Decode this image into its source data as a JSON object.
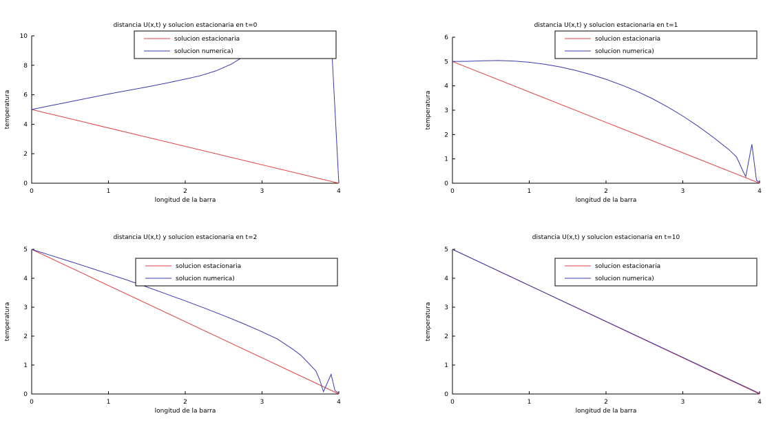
{
  "figure": {
    "background": "#ffffff",
    "axis_color": "#000000",
    "series_colors": {
      "estacionaria": "#e04040",
      "numerica": "#3838b0"
    }
  },
  "chart_data": [
    {
      "type": "line",
      "title": "distancia U(x,t) y solucion estacionaria en t=0",
      "xlabel": "longitud de la barra",
      "ylabel": "temperatura",
      "xlim": [
        0,
        4
      ],
      "ylim": [
        0,
        10
      ],
      "xticks": [
        0,
        1,
        2,
        3,
        4
      ],
      "yticks": [
        0,
        2,
        4,
        6,
        8,
        10
      ],
      "grid": false,
      "legend_position": "top-right-inside",
      "series": [
        {
          "name": "solucion estacionaria",
          "color": "#e04040",
          "points": [
            [
              0,
              5
            ],
            [
              4,
              0
            ]
          ]
        },
        {
          "name": "solucion numerica)",
          "color": "#3838b0",
          "points": [
            [
              0,
              5
            ],
            [
              0.25,
              5.27
            ],
            [
              0.5,
              5.53
            ],
            [
              0.75,
              5.79
            ],
            [
              1,
              6.05
            ],
            [
              1.25,
              6.29
            ],
            [
              1.5,
              6.53
            ],
            [
              1.75,
              6.79
            ],
            [
              2,
              7.06
            ],
            [
              2.2,
              7.3
            ],
            [
              2.4,
              7.62
            ],
            [
              2.6,
              8.08
            ],
            [
              2.7,
              8.4
            ],
            [
              2.8,
              8.72
            ],
            [
              3,
              9.18
            ],
            [
              3.2,
              9.5
            ],
            [
              3.4,
              9.7
            ],
            [
              3.6,
              9.84
            ],
            [
              3.8,
              9.94
            ],
            [
              3.9,
              9.98
            ],
            [
              4,
              0
            ]
          ]
        }
      ]
    },
    {
      "type": "line",
      "title": "distancia U(x,t) y solucion estacionaria en t=1",
      "xlabel": "longitud de la barra",
      "ylabel": "temperatura",
      "xlim": [
        0,
        4
      ],
      "ylim": [
        0,
        6
      ],
      "xticks": [
        0,
        1,
        2,
        3,
        4
      ],
      "yticks": [
        0,
        1,
        2,
        3,
        4,
        5,
        6
      ],
      "grid": false,
      "legend_position": "top-right-inside",
      "series": [
        {
          "name": "solucion estacionaria",
          "color": "#e04040",
          "points": [
            [
              0,
              5
            ],
            [
              4,
              0
            ]
          ]
        },
        {
          "name": "solucion numerica)",
          "color": "#3838b0",
          "points": [
            [
              0,
              5
            ],
            [
              0.2,
              5.01
            ],
            [
              0.4,
              5.03
            ],
            [
              0.6,
              5.04
            ],
            [
              0.8,
              5.02
            ],
            [
              1,
              4.97
            ],
            [
              1.2,
              4.89
            ],
            [
              1.4,
              4.78
            ],
            [
              1.6,
              4.64
            ],
            [
              1.8,
              4.47
            ],
            [
              2,
              4.27
            ],
            [
              2.2,
              4.04
            ],
            [
              2.4,
              3.78
            ],
            [
              2.6,
              3.48
            ],
            [
              2.8,
              3.14
            ],
            [
              3,
              2.76
            ],
            [
              3.2,
              2.34
            ],
            [
              3.4,
              1.88
            ],
            [
              3.6,
              1.38
            ],
            [
              3.7,
              1.08
            ],
            [
              3.78,
              0.52
            ],
            [
              3.82,
              0.27
            ],
            [
              3.9,
              1.6
            ],
            [
              3.96,
              0.12
            ],
            [
              4,
              0.03
            ]
          ]
        }
      ]
    },
    {
      "type": "line",
      "title": "distancia U(x,t) y solucion estacionaria en t=2",
      "xlabel": "longitud de la barra",
      "ylabel": "temperatura",
      "xlim": [
        0,
        4
      ],
      "ylim": [
        0,
        5
      ],
      "xticks": [
        0,
        1,
        2,
        3,
        4
      ],
      "yticks": [
        0,
        1,
        2,
        3,
        4,
        5
      ],
      "grid": false,
      "legend_position": "top-right-inside",
      "series": [
        {
          "name": "solucion estacionaria",
          "color": "#e04040",
          "points": [
            [
              0,
              5
            ],
            [
              4,
              0
            ]
          ]
        },
        {
          "name": "solucion numerica)",
          "color": "#3838b0",
          "points": [
            [
              0,
              5
            ],
            [
              0.25,
              4.79
            ],
            [
              0.5,
              4.58
            ],
            [
              0.75,
              4.37
            ],
            [
              1,
              4.15
            ],
            [
              1.25,
              3.93
            ],
            [
              1.5,
              3.7
            ],
            [
              1.75,
              3.46
            ],
            [
              2,
              3.22
            ],
            [
              2.25,
              2.97
            ],
            [
              2.5,
              2.71
            ],
            [
              2.75,
              2.44
            ],
            [
              3,
              2.15
            ],
            [
              3.2,
              1.9
            ],
            [
              3.4,
              1.55
            ],
            [
              3.5,
              1.35
            ],
            [
              3.6,
              1.08
            ],
            [
              3.7,
              0.8
            ],
            [
              3.75,
              0.5
            ],
            [
              3.8,
              0.08
            ],
            [
              3.9,
              0.68
            ],
            [
              3.95,
              0.12
            ],
            [
              4,
              0.03
            ]
          ]
        }
      ]
    },
    {
      "type": "line",
      "title": "distancia U(x,t) y solucion estacionaria en t=10",
      "xlabel": "longitud de la barra",
      "ylabel": "temperatura",
      "xlim": [
        0,
        4
      ],
      "ylim": [
        0,
        5
      ],
      "xticks": [
        0,
        1,
        2,
        3,
        4
      ],
      "yticks": [
        0,
        1,
        2,
        3,
        4,
        5
      ],
      "grid": false,
      "legend_position": "top-right-inside",
      "series": [
        {
          "name": "solucion estacionaria",
          "color": "#e04040",
          "points": [
            [
              0,
              5
            ],
            [
              4,
              0
            ]
          ]
        },
        {
          "name": "solucion numerica)",
          "color": "#3838b0",
          "points": [
            [
              0,
              5
            ],
            [
              4,
              0.02
            ]
          ]
        }
      ]
    }
  ]
}
